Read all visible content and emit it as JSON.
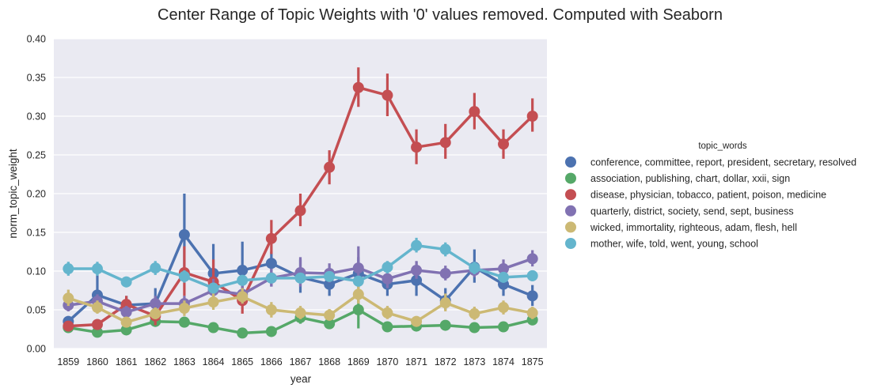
{
  "chart_data": {
    "type": "line",
    "title": "Center Range of Topic Weights with '0' values removed. Computed with Seaborn",
    "xlabel": "year",
    "ylabel": "norm_topic_weight",
    "ylim": [
      0.0,
      0.4
    ],
    "yticks": [
      "0.00",
      "0.05",
      "0.10",
      "0.15",
      "0.20",
      "0.25",
      "0.30",
      "0.35",
      "0.40"
    ],
    "categories": [
      "1859",
      "1860",
      "1861",
      "1862",
      "1863",
      "1864",
      "1865",
      "1866",
      "1867",
      "1868",
      "1869",
      "1870",
      "1871",
      "1872",
      "1873",
      "1874",
      "1875"
    ],
    "grid": true,
    "legend_title": "topic_words",
    "legend_position": "right",
    "series": [
      {
        "name": "conference, committee, report, president, secretary, resolved",
        "color": "#4C72B0",
        "values": [
          0.035,
          0.069,
          0.056,
          0.058,
          0.147,
          0.097,
          0.101,
          0.11,
          0.092,
          0.083,
          0.097,
          0.083,
          0.088,
          0.062,
          0.105,
          0.083,
          0.068
        ],
        "ci": [
          [
            0.028,
            0.042
          ],
          [
            0.048,
            0.098
          ],
          [
            0.045,
            0.068
          ],
          [
            0.04,
            0.078
          ],
          [
            0.105,
            0.2
          ],
          [
            0.07,
            0.135
          ],
          [
            0.075,
            0.138
          ],
          [
            0.08,
            0.125
          ],
          [
            0.072,
            0.115
          ],
          [
            0.068,
            0.102
          ],
          [
            0.078,
            0.118
          ],
          [
            0.068,
            0.102
          ],
          [
            0.068,
            0.112
          ],
          [
            0.05,
            0.078
          ],
          [
            0.085,
            0.128
          ],
          [
            0.068,
            0.1
          ],
          [
            0.055,
            0.082
          ]
        ]
      },
      {
        "name": "association, publishing, chart, dollar, xxii, sign",
        "color": "#55A868",
        "values": [
          0.027,
          0.021,
          0.024,
          0.035,
          0.034,
          0.027,
          0.02,
          0.022,
          0.04,
          0.032,
          0.05,
          0.028,
          0.029,
          0.03,
          0.027,
          0.028,
          0.037
        ],
        "ci": [
          [
            0.022,
            0.033
          ],
          [
            0.017,
            0.026
          ],
          [
            0.019,
            0.03
          ],
          [
            0.028,
            0.043
          ],
          [
            0.028,
            0.041
          ],
          [
            0.022,
            0.033
          ],
          [
            0.016,
            0.025
          ],
          [
            0.018,
            0.027
          ],
          [
            0.032,
            0.048
          ],
          [
            0.026,
            0.039
          ],
          [
            0.026,
            0.072
          ],
          [
            0.022,
            0.034
          ],
          [
            0.023,
            0.036
          ],
          [
            0.024,
            0.036
          ],
          [
            0.022,
            0.033
          ],
          [
            0.022,
            0.034
          ],
          [
            0.03,
            0.045
          ]
        ]
      },
      {
        "name": "disease, physician, tobacco, patient, poison, medicine",
        "color": "#C44E52",
        "values": [
          0.029,
          0.031,
          0.057,
          0.042,
          0.098,
          0.086,
          0.062,
          0.142,
          0.178,
          0.234,
          0.337,
          0.327,
          0.26,
          0.266,
          0.306,
          0.264,
          0.3
        ],
        "ci": [
          [
            0.024,
            0.035
          ],
          [
            0.025,
            0.038
          ],
          [
            0.045,
            0.068
          ],
          [
            0.03,
            0.055
          ],
          [
            0.068,
            0.132
          ],
          [
            0.06,
            0.115
          ],
          [
            0.045,
            0.08
          ],
          [
            0.122,
            0.166
          ],
          [
            0.158,
            0.2
          ],
          [
            0.212,
            0.256
          ],
          [
            0.312,
            0.363
          ],
          [
            0.3,
            0.355
          ],
          [
            0.238,
            0.283
          ],
          [
            0.245,
            0.29
          ],
          [
            0.283,
            0.33
          ],
          [
            0.245,
            0.283
          ],
          [
            0.28,
            0.323
          ]
        ]
      },
      {
        "name": "quarterly, district, society, send, sept, business",
        "color": "#8172B2",
        "values": [
          0.056,
          0.061,
          0.047,
          0.058,
          0.058,
          0.075,
          0.07,
          0.091,
          0.098,
          0.097,
          0.104,
          0.09,
          0.101,
          0.097,
          0.101,
          0.103,
          0.116
        ],
        "ci": [
          [
            0.048,
            0.064
          ],
          [
            0.052,
            0.07
          ],
          [
            0.04,
            0.055
          ],
          [
            0.048,
            0.068
          ],
          [
            0.048,
            0.068
          ],
          [
            0.062,
            0.09
          ],
          [
            0.058,
            0.082
          ],
          [
            0.08,
            0.103
          ],
          [
            0.08,
            0.118
          ],
          [
            0.085,
            0.11
          ],
          [
            0.08,
            0.132
          ],
          [
            0.078,
            0.102
          ],
          [
            0.09,
            0.113
          ],
          [
            0.088,
            0.107
          ],
          [
            0.092,
            0.11
          ],
          [
            0.092,
            0.115
          ],
          [
            0.106,
            0.127
          ]
        ]
      },
      {
        "name": "wicked, immortality, righteous, adam, flesh, hell",
        "color": "#CCB974",
        "values": [
          0.065,
          0.053,
          0.034,
          0.045,
          0.052,
          0.06,
          0.067,
          0.05,
          0.046,
          0.043,
          0.07,
          0.046,
          0.035,
          0.059,
          0.045,
          0.053,
          0.046
        ],
        "ci": [
          [
            0.055,
            0.076
          ],
          [
            0.045,
            0.062
          ],
          [
            0.028,
            0.041
          ],
          [
            0.038,
            0.053
          ],
          [
            0.042,
            0.062
          ],
          [
            0.05,
            0.072
          ],
          [
            0.058,
            0.078
          ],
          [
            0.04,
            0.06
          ],
          [
            0.038,
            0.055
          ],
          [
            0.036,
            0.051
          ],
          [
            0.058,
            0.084
          ],
          [
            0.038,
            0.055
          ],
          [
            0.029,
            0.042
          ],
          [
            0.048,
            0.071
          ],
          [
            0.037,
            0.054
          ],
          [
            0.044,
            0.062
          ],
          [
            0.038,
            0.054
          ]
        ]
      },
      {
        "name": "mother, wife, told, went, young, school",
        "color": "#64B5CD",
        "values": [
          0.103,
          0.103,
          0.086,
          0.104,
          0.093,
          0.078,
          0.088,
          0.091,
          0.091,
          0.093,
          0.087,
          0.105,
          0.133,
          0.128,
          0.104,
          0.092,
          0.094
        ],
        "ci": [
          [
            0.094,
            0.112
          ],
          [
            0.094,
            0.112
          ],
          [
            0.079,
            0.093
          ],
          [
            0.095,
            0.113
          ],
          [
            0.085,
            0.101
          ],
          [
            0.071,
            0.085
          ],
          [
            0.081,
            0.095
          ],
          [
            0.084,
            0.098
          ],
          [
            0.084,
            0.098
          ],
          [
            0.086,
            0.1
          ],
          [
            0.08,
            0.094
          ],
          [
            0.097,
            0.113
          ],
          [
            0.124,
            0.143
          ],
          [
            0.119,
            0.137
          ],
          [
            0.096,
            0.112
          ],
          [
            0.085,
            0.099
          ],
          [
            0.087,
            0.101
          ]
        ]
      }
    ]
  }
}
